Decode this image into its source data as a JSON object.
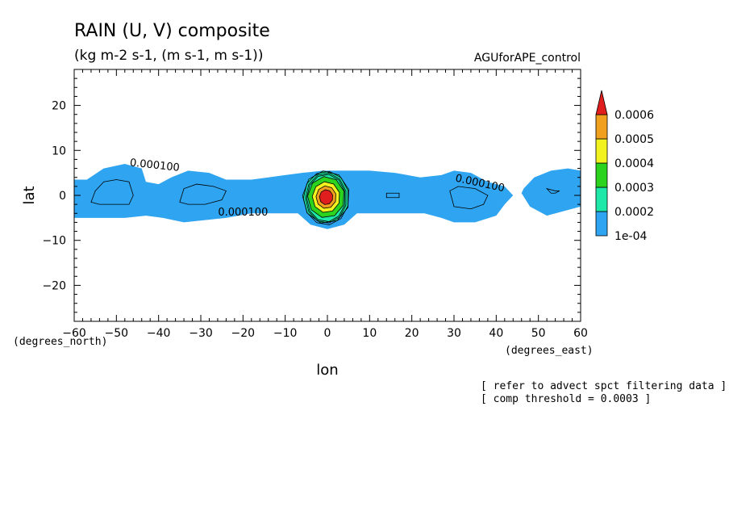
{
  "header": {
    "title": "RAIN (U, V) composite",
    "units": "(kg m-2 s-1, (m s-1, m s-1))",
    "experiment": "AGUforAPE_control"
  },
  "notes": {
    "line1": "[ refer to advect spct filtering data ]",
    "line2": "[ comp threshold = 0.0003 ]"
  },
  "chart_data": {
    "type": "heatmap",
    "title": "RAIN (U, V) composite",
    "subtitle": "(kg m-2 s-1, (m s-1, m s-1))",
    "xlabel": "lon",
    "ylabel": "lat",
    "xunit": "(degrees_east)",
    "yunit": "(degrees_north)",
    "xlim": [
      -60,
      60
    ],
    "ylim": [
      -28,
      28
    ],
    "xticks": [
      -60,
      -50,
      -40,
      -30,
      -20,
      -10,
      0,
      10,
      20,
      30,
      40,
      50,
      60
    ],
    "yticks": [
      -20,
      -10,
      0,
      10,
      20
    ],
    "contour_labels": [
      {
        "text": "0.000100",
        "lon": -41,
        "lat": 6
      },
      {
        "text": "0.000100",
        "lon": -20,
        "lat": -4.5
      },
      {
        "text": "0.000100",
        "lon": 36,
        "lat": 2
      }
    ],
    "peak": {
      "lon": 0,
      "lat": 0,
      "value": 0.00065
    },
    "colorbar": {
      "levels": [
        "1e-04",
        "0.0002",
        "0.0003",
        "0.0004",
        "0.0005",
        "0.0006"
      ],
      "colors": [
        "#2fa4f0",
        "#1ee8a8",
        "#2bd21e",
        "#f2f21e",
        "#f0a01e",
        "#e01e1e"
      ]
    },
    "grid": false,
    "legend": "right"
  }
}
